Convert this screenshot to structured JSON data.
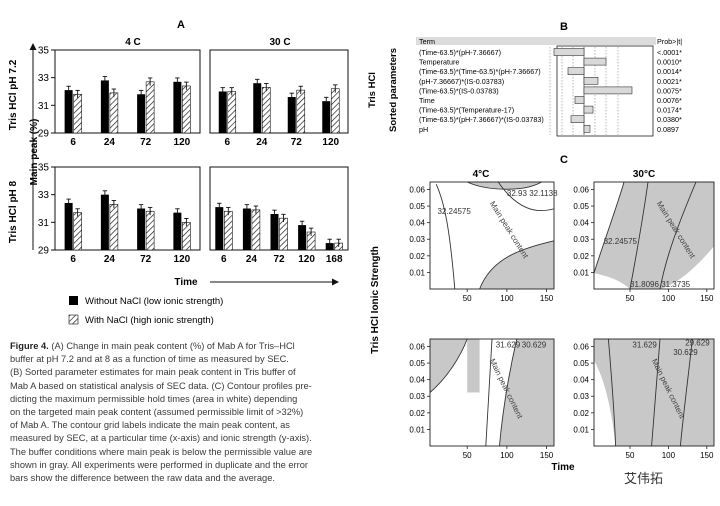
{
  "panel_a": {
    "label": "A",
    "col_titles": [
      "4 C",
      "30 C"
    ],
    "y_axis_title": "Main peak (%)",
    "row_labels": [
      "Tris HCl pH 7.2",
      "Tris HCl pH 8"
    ],
    "x_axis_title": "Time",
    "legend": [
      "Without NaCl (low ionic strength)",
      "With NaCl (high ionic strength)"
    ]
  },
  "panel_b": {
    "label": "B",
    "side_labels": [
      "Tris HCl",
      "Sorted parameters"
    ],
    "header_term": "Term",
    "header_prob": "Prob>|t|",
    "terms": [
      "(Time-63.5)*(pH-7.36667)",
      "Temperature",
      "(Time-63.5)*(Time-63.5)*(pH-7.36667)",
      "(pH-7.36667)*(IS-0.03783)",
      "(Time-63.5)*(IS-0.03783)",
      "Time",
      "(Time-63.5)*(Temperature-17)",
      "(Time-63.5)*(pH-7.36667)*(IS-0.03783)",
      "pH"
    ],
    "probs": [
      "<.0001*",
      "0.0010*",
      "0.0014*",
      "0.0021*",
      "0.0075*",
      "0.0076*",
      "0.0174*",
      "0.0380*",
      "0.0897"
    ]
  },
  "panel_c": {
    "label": "C",
    "col_titles": [
      "4°C",
      "30°C"
    ],
    "y_axis_title": "Tris HCl Ionic Strength",
    "x_axis_title": "Time",
    "x_ticks": [
      "50",
      "100",
      "150"
    ],
    "y_ticks": [
      "0.06",
      "0.05",
      "0.04",
      "0.03",
      "0.02",
      "0.01"
    ],
    "contour_tag": "Main peak content",
    "plots": [
      {
        "labels": [
          "32.24575",
          "32.93",
          "32.1138"
        ]
      },
      {
        "labels": [
          "32.24575",
          "31.8096",
          "31.3735"
        ]
      },
      {
        "labels": [
          "31.629",
          "30.629"
        ]
      },
      {
        "labels": [
          "31.629",
          "29.629",
          "30.629"
        ]
      }
    ]
  },
  "chart_data": [
    {
      "type": "bar",
      "panel": "A 4 C pH 7.2",
      "categories": [
        "6",
        "24",
        "72",
        "120"
      ],
      "ylim": [
        29,
        35
      ],
      "series": [
        {
          "name": "Without NaCl (low ionic strength)",
          "values": [
            32.1,
            32.8,
            31.8,
            32.7
          ]
        },
        {
          "name": "With NaCl (high ionic strength)",
          "values": [
            31.8,
            31.9,
            32.7,
            32.4
          ]
        }
      ]
    },
    {
      "type": "bar",
      "panel": "A 30 C pH 7.2",
      "categories": [
        "6",
        "24",
        "72",
        "120"
      ],
      "ylim": [
        29,
        35
      ],
      "series": [
        {
          "name": "Without NaCl (low ionic strength)",
          "values": [
            32.0,
            32.6,
            31.6,
            31.3
          ]
        },
        {
          "name": "With NaCl (high ionic strength)",
          "values": [
            32.0,
            32.3,
            32.1,
            32.2
          ]
        }
      ]
    },
    {
      "type": "bar",
      "panel": "A 4 C pH 8",
      "categories": [
        "6",
        "24",
        "72",
        "120"
      ],
      "ylim": [
        29,
        35
      ],
      "series": [
        {
          "name": "Without NaCl (low ionic strength)",
          "values": [
            32.4,
            33.0,
            32.0,
            31.7
          ]
        },
        {
          "name": "With NaCl (high ionic strength)",
          "values": [
            31.7,
            32.3,
            31.8,
            31.0
          ]
        }
      ]
    },
    {
      "type": "bar",
      "panel": "A 30 C pH 8",
      "categories": [
        "6",
        "24",
        "72",
        "120",
        "168"
      ],
      "ylim": [
        29,
        35
      ],
      "series": [
        {
          "name": "Without NaCl (low ionic strength)",
          "values": [
            32.1,
            32.0,
            31.6,
            30.8,
            29.5
          ]
        },
        {
          "name": "With NaCl (high ionic strength)",
          "values": [
            31.8,
            31.9,
            31.3,
            30.3,
            29.5
          ]
        }
      ]
    }
  ],
  "caption": {
    "fig_label": "Figure 4.",
    "lines": [
      "(A) Change in main peak content (%) of Mab A for Tris–HCl",
      "buffer at pH 7.2 and at 8 as a function of time as measured by SEC.",
      "(B) Sorted parameter estimates for main peak content in Tris buffer of",
      "Mab A based on statistical analysis of SEC data. (C) Contour profiles pre-",
      "dicting the maximum permissible hold times (area in white) depending",
      "on the targeted main peak content (assumed permissible limit of >32%)",
      "of Mab A. The contour grid labels indicate the main peak content, as",
      "measured by SEC, at a particular time (x-axis) and ionic strength (y-axis).",
      "The buffer conditions where main peak is below the permissible value are",
      "shown in gray. All experiments were performed in duplicate and the error",
      "bars show the difference between the raw data and the average."
    ]
  },
  "watermark": "艾伟拓"
}
